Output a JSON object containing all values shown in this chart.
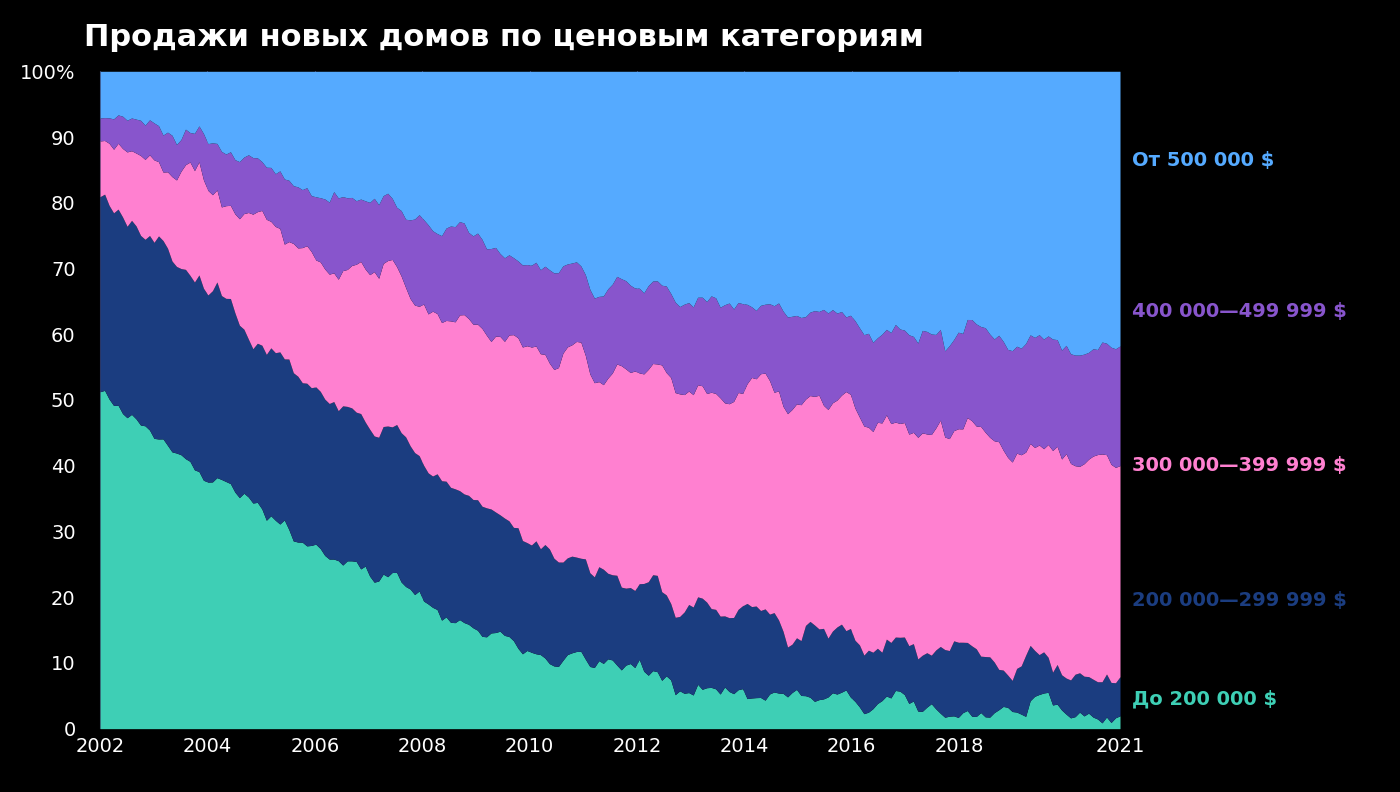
{
  "title": "Продажи новых домов по ценовым категориям",
  "background_color": "#000000",
  "text_color": "#ffffff",
  "title_fontsize": 22,
  "axis_label_fontsize": 14,
  "legend_fontsize": 14,
  "colors": {
    "under_200k": "#3ecfb5",
    "200k_299k": "#1b3d80",
    "300k_399k": "#ff80d0",
    "400k_499k": "#8855cc",
    "over_500k": "#55aaff"
  },
  "legend_labels": [
    "От 500 000 $",
    "400 000—499 999 $",
    "300 000—399 999 $",
    "200 000—299 999 $",
    "До 200 000 $"
  ],
  "legend_colors": [
    "#55aaff",
    "#8855cc",
    "#ff80d0",
    "#1b3d80",
    "#3ecfb5"
  ],
  "ylim": [
    0,
    100
  ],
  "yticks": [
    0,
    10,
    20,
    30,
    40,
    50,
    60,
    70,
    80,
    90,
    100
  ],
  "ytick_labels": [
    "0",
    "10",
    "20",
    "30",
    "40",
    "50",
    "60",
    "70",
    "80",
    "90",
    "100%"
  ],
  "xtick_years": [
    2002,
    2004,
    2006,
    2008,
    2010,
    2012,
    2014,
    2016,
    2018,
    2021
  ]
}
